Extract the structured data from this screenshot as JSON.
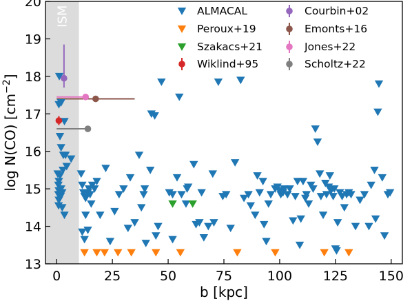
{
  "chart_data": {
    "type": "scatter",
    "xlabel": "b [kpc]",
    "ylabel": "log N(CO) [cm$^{-2}$]",
    "ylabel_parts": [
      "log N(CO) [cm",
      "−2",
      "]"
    ],
    "xlim": [
      -5,
      155
    ],
    "ylim": [
      13,
      20
    ],
    "x_ticks": [
      0,
      25,
      50,
      75,
      100,
      125,
      150
    ],
    "y_ticks": [
      13,
      14,
      15,
      16,
      17,
      18,
      19,
      20
    ],
    "grid": false,
    "legend_position": "top-right",
    "shaded_region": {
      "label": "ISM",
      "x_range": [
        -5,
        10
      ],
      "color": "#dcdcdc"
    },
    "series": [
      {
        "name": "ALMACAL",
        "marker": "triangle-down",
        "color": "#1f77b4",
        "points": [
          [
            1.2,
            18.0
          ],
          [
            1.0,
            17.25
          ],
          [
            2.0,
            17.3
          ],
          [
            3.5,
            16.8
          ],
          [
            1.5,
            16.4
          ],
          [
            2.0,
            16.1
          ],
          [
            3.0,
            15.9
          ],
          [
            4.0,
            15.9
          ],
          [
            0.5,
            15.4
          ],
          [
            1.5,
            15.35
          ],
          [
            1.0,
            15.2
          ],
          [
            0.8,
            15.1
          ],
          [
            2.0,
            15.0
          ],
          [
            1.0,
            14.95
          ],
          [
            2.5,
            14.9
          ],
          [
            0.8,
            14.85
          ],
          [
            1.8,
            14.8
          ],
          [
            1.0,
            14.7
          ],
          [
            0.9,
            14.55
          ],
          [
            2.8,
            15.5
          ],
          [
            4.5,
            15.6
          ],
          [
            6.5,
            15.8
          ],
          [
            3.5,
            14.3
          ],
          [
            2.5,
            14.5
          ],
          [
            11.0,
            15.4
          ],
          [
            11.5,
            15.1
          ],
          [
            12.0,
            14.9
          ],
          [
            12.5,
            14.8
          ],
          [
            13.0,
            14.75
          ],
          [
            14.0,
            14.9
          ],
          [
            14.5,
            15.0
          ],
          [
            15.0,
            14.85
          ],
          [
            16.0,
            15.1
          ],
          [
            17.0,
            15.0
          ],
          [
            15.5,
            14.6
          ],
          [
            13.0,
            14.3
          ],
          [
            11.5,
            13.85
          ],
          [
            12.5,
            13.65
          ],
          [
            14.0,
            13.9
          ],
          [
            18.0,
            15.2
          ],
          [
            19.5,
            14.3
          ],
          [
            22.0,
            15.55
          ],
          [
            24.0,
            13.6
          ],
          [
            26.0,
            14.4
          ],
          [
            28.0,
            14.85
          ],
          [
            30.0,
            15.0
          ],
          [
            32.0,
            13.95
          ],
          [
            33.0,
            15.3
          ],
          [
            35.0,
            14.1
          ],
          [
            37.0,
            15.9
          ],
          [
            38.0,
            14.5
          ],
          [
            40.0,
            13.55
          ],
          [
            39.0,
            14.85
          ],
          [
            39.5,
            15.0
          ],
          [
            42.0,
            15.5
          ],
          [
            42.5,
            17.0
          ],
          [
            44.0,
            16.95
          ],
          [
            44.5,
            13.75
          ],
          [
            45.5,
            14.0
          ],
          [
            47.0,
            17.85
          ],
          [
            50.5,
            14.9
          ],
          [
            52.0,
            14.85
          ],
          [
            52.0,
            13.65
          ],
          [
            54.0,
            15.3
          ],
          [
            55.0,
            17.45
          ],
          [
            56.0,
            14.85
          ],
          [
            58.0,
            14.6
          ],
          [
            58.5,
            15.0
          ],
          [
            59.0,
            15.05
          ],
          [
            61.5,
            15.65
          ],
          [
            62.5,
            14.05
          ],
          [
            64.0,
            14.1
          ],
          [
            65.0,
            14.9
          ],
          [
            66.0,
            13.7
          ],
          [
            68.0,
            14.0
          ],
          [
            70.0,
            15.4
          ],
          [
            70.5,
            14.1
          ],
          [
            72.5,
            17.85
          ],
          [
            74.5,
            14.8
          ],
          [
            76.0,
            14.85
          ],
          [
            78.0,
            13.95
          ],
          [
            80.0,
            15.7
          ],
          [
            82.5,
            17.9
          ],
          [
            84.0,
            14.75
          ],
          [
            86.0,
            14.85
          ],
          [
            87.0,
            14.55
          ],
          [
            89.0,
            14.3
          ],
          [
            90.0,
            15.35
          ],
          [
            91.0,
            14.9
          ],
          [
            92.5,
            15.2
          ],
          [
            93.0,
            14.05
          ],
          [
            94.0,
            13.6
          ],
          [
            95.0,
            14.6
          ],
          [
            96.0,
            14.85
          ],
          [
            98.0,
            15.0
          ],
          [
            99.0,
            15.05
          ],
          [
            100.0,
            14.95
          ],
          [
            100.5,
            14.85
          ],
          [
            101.5,
            14.9
          ],
          [
            102.0,
            15.0
          ],
          [
            103.5,
            14.85
          ],
          [
            104.5,
            15.0
          ],
          [
            106.0,
            14.15
          ],
          [
            107.0,
            14.8
          ],
          [
            108.0,
            15.2
          ],
          [
            109.0,
            13.5
          ],
          [
            109.5,
            14.2
          ],
          [
            110.5,
            15.2
          ],
          [
            111.5,
            14.75
          ],
          [
            112.0,
            14.85
          ],
          [
            113.0,
            14.6
          ],
          [
            114.0,
            15.1
          ],
          [
            115.0,
            15.0
          ],
          [
            116.0,
            16.6
          ],
          [
            117.0,
            16.25
          ],
          [
            118.0,
            15.4
          ],
          [
            118.5,
            14.8
          ],
          [
            119.5,
            14.3
          ],
          [
            120.5,
            15.15
          ],
          [
            121.0,
            14.85
          ],
          [
            122.0,
            15.05
          ],
          [
            122.5,
            15.35
          ],
          [
            123.0,
            14.95
          ],
          [
            124.0,
            14.8
          ],
          [
            124.5,
            15.0
          ],
          [
            125.0,
            13.4
          ],
          [
            125.5,
            13.35
          ],
          [
            126.0,
            14.1
          ],
          [
            127.0,
            14.9
          ],
          [
            128.0,
            14.8
          ],
          [
            129.0,
            14.5
          ],
          [
            130.0,
            14.85
          ],
          [
            131.0,
            14.9
          ],
          [
            132.0,
            14.85
          ],
          [
            134.0,
            14.0
          ],
          [
            136.0,
            14.7
          ],
          [
            138.0,
            14.85
          ],
          [
            140.0,
            14.0
          ],
          [
            141.0,
            15.1
          ],
          [
            142.5,
            15.5
          ],
          [
            143.0,
            14.2
          ],
          [
            144.0,
            17.05
          ],
          [
            144.5,
            17.8
          ],
          [
            146.0,
            15.3
          ],
          [
            147.0,
            13.75
          ],
          [
            148.5,
            14.85
          ],
          [
            149.5,
            14.9
          ]
        ]
      },
      {
        "name": "Peroux+19",
        "marker": "triangle-down",
        "color": "#ff7f0e",
        "points": [
          [
            12.5,
            13.3
          ],
          [
            18.0,
            13.3
          ],
          [
            21.5,
            13.3
          ],
          [
            27.5,
            13.3
          ],
          [
            33.5,
            13.3
          ],
          [
            44.5,
            13.3
          ],
          [
            55.5,
            13.3
          ],
          [
            81.0,
            13.3
          ],
          [
            98.0,
            13.3
          ],
          [
            120.0,
            13.3
          ],
          [
            131.0,
            13.3
          ]
        ]
      },
      {
        "name": "Szakacs+21",
        "marker": "triangle-down",
        "color": "#2ca02c",
        "points": [
          [
            52.0,
            14.6
          ],
          [
            61.0,
            14.6
          ]
        ]
      },
      {
        "name": "Wiklind+95",
        "marker": "circle",
        "color": "#d62728",
        "points": [
          [
            1.0,
            16.82
          ]
        ],
        "errors": [
          {
            "xerr": 0,
            "yerr": 0.12
          }
        ]
      },
      {
        "name": "Courbin+02",
        "marker": "circle",
        "color": "#9467bd",
        "points": [
          [
            3.3,
            17.95
          ]
        ],
        "errors": [
          {
            "xerr": 0,
            "yerr_low": 0.25,
            "yerr_high": 0.9
          }
        ]
      },
      {
        "name": "Emonts+16",
        "marker": "circle",
        "color": "#8c564b",
        "points": [
          [
            17.5,
            17.4
          ]
        ],
        "errors": [
          {
            "x_range": [
              0,
              35
            ],
            "yerr": 0
          }
        ]
      },
      {
        "name": "Jones+22",
        "marker": "circle",
        "color": "#e377c2",
        "points": [
          [
            13.0,
            17.45
          ]
        ],
        "errors": [
          {
            "x_range": [
              0,
              13
            ],
            "yerr": 0
          }
        ]
      },
      {
        "name": "Scholtz+22",
        "marker": "circle",
        "color": "#7f7f7f",
        "points": [
          [
            14.0,
            16.6
          ]
        ],
        "errors": [
          {
            "x_range": [
              0,
              14
            ],
            "yerr": 0
          }
        ]
      }
    ]
  }
}
